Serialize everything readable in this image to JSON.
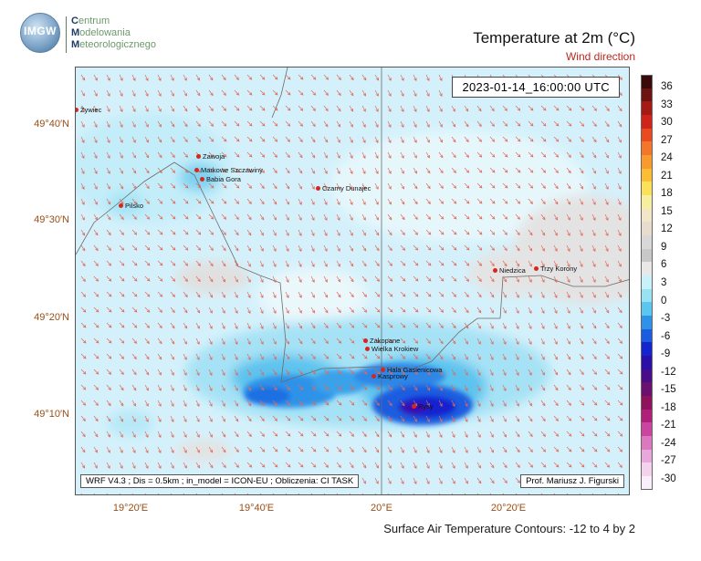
{
  "logo": {
    "badge": "IMGW",
    "line1_initial": "C",
    "line1_rest": "entrum",
    "line2_initial": "M",
    "line2_rest": "odelowania",
    "line3_initial": "M",
    "line3_rest": "eteorologicznego"
  },
  "header": {
    "title": "Temperature at 2m (°C)",
    "subtitle": "Wind direction"
  },
  "map": {
    "timestamp": "2023-01-14_16:00:00 UTC",
    "credit_left": "WRF V4.3 ; Dis = 0.5km ; in_model = ICON-EU ; Obliczenia: CI TASK",
    "credit_right": "Prof. Mariusz J. Figurski",
    "cities": [
      {
        "name": "Żywiec"
      },
      {
        "name": "Zawoja"
      },
      {
        "name": "Markowe Szczawiny"
      },
      {
        "name": "Babia Gora"
      },
      {
        "name": "Pilsko"
      },
      {
        "name": "Czarny Dunajec"
      },
      {
        "name": "Niedzica"
      },
      {
        "name": "Trzy Korony"
      },
      {
        "name": "Zakopane"
      },
      {
        "name": "Wielka Krokiew"
      },
      {
        "name": "Hala Gasienicowa"
      },
      {
        "name": "Kasprowy"
      },
      {
        "name": "Rysy"
      }
    ],
    "lat_labels": [
      "49°40′N",
      "49°30′N",
      "49°20′N",
      "49°10′N"
    ],
    "lon_labels": [
      "19°20′E",
      "19°40′E",
      "20°E",
      "20°20′E"
    ]
  },
  "footer": {
    "caption": "Surface Air Temperature Contours: -12 to 4 by 2"
  },
  "colorbar": {
    "ticks": [
      "36",
      "33",
      "30",
      "27",
      "24",
      "21",
      "18",
      "15",
      "12",
      "9",
      "6",
      "3",
      "0",
      "-3",
      "-6",
      "-9",
      "-12",
      "-15",
      "-18",
      "-21",
      "-24",
      "-27",
      "-30"
    ],
    "colors": [
      "#3a0a0a",
      "#6e1410",
      "#a51a12",
      "#d0241a",
      "#ea4a20",
      "#f4762a",
      "#f99a2e",
      "#fbbd34",
      "#fbe05a",
      "#f7eea0",
      "#f3e6c8",
      "#e8dccd",
      "#d8d8d8",
      "#c8c8c8",
      "#e8e8e8",
      "#c9f1f9",
      "#98e2f4",
      "#5bc6ef",
      "#2e93e8",
      "#1a5de0",
      "#1424cf",
      "#2a10a8",
      "#4a0d8a",
      "#6a1070",
      "#90115c",
      "#b0207a",
      "#c945a0",
      "#db78c0",
      "#e8a8dc",
      "#f3d2ee",
      "#fbeefb"
    ]
  }
}
